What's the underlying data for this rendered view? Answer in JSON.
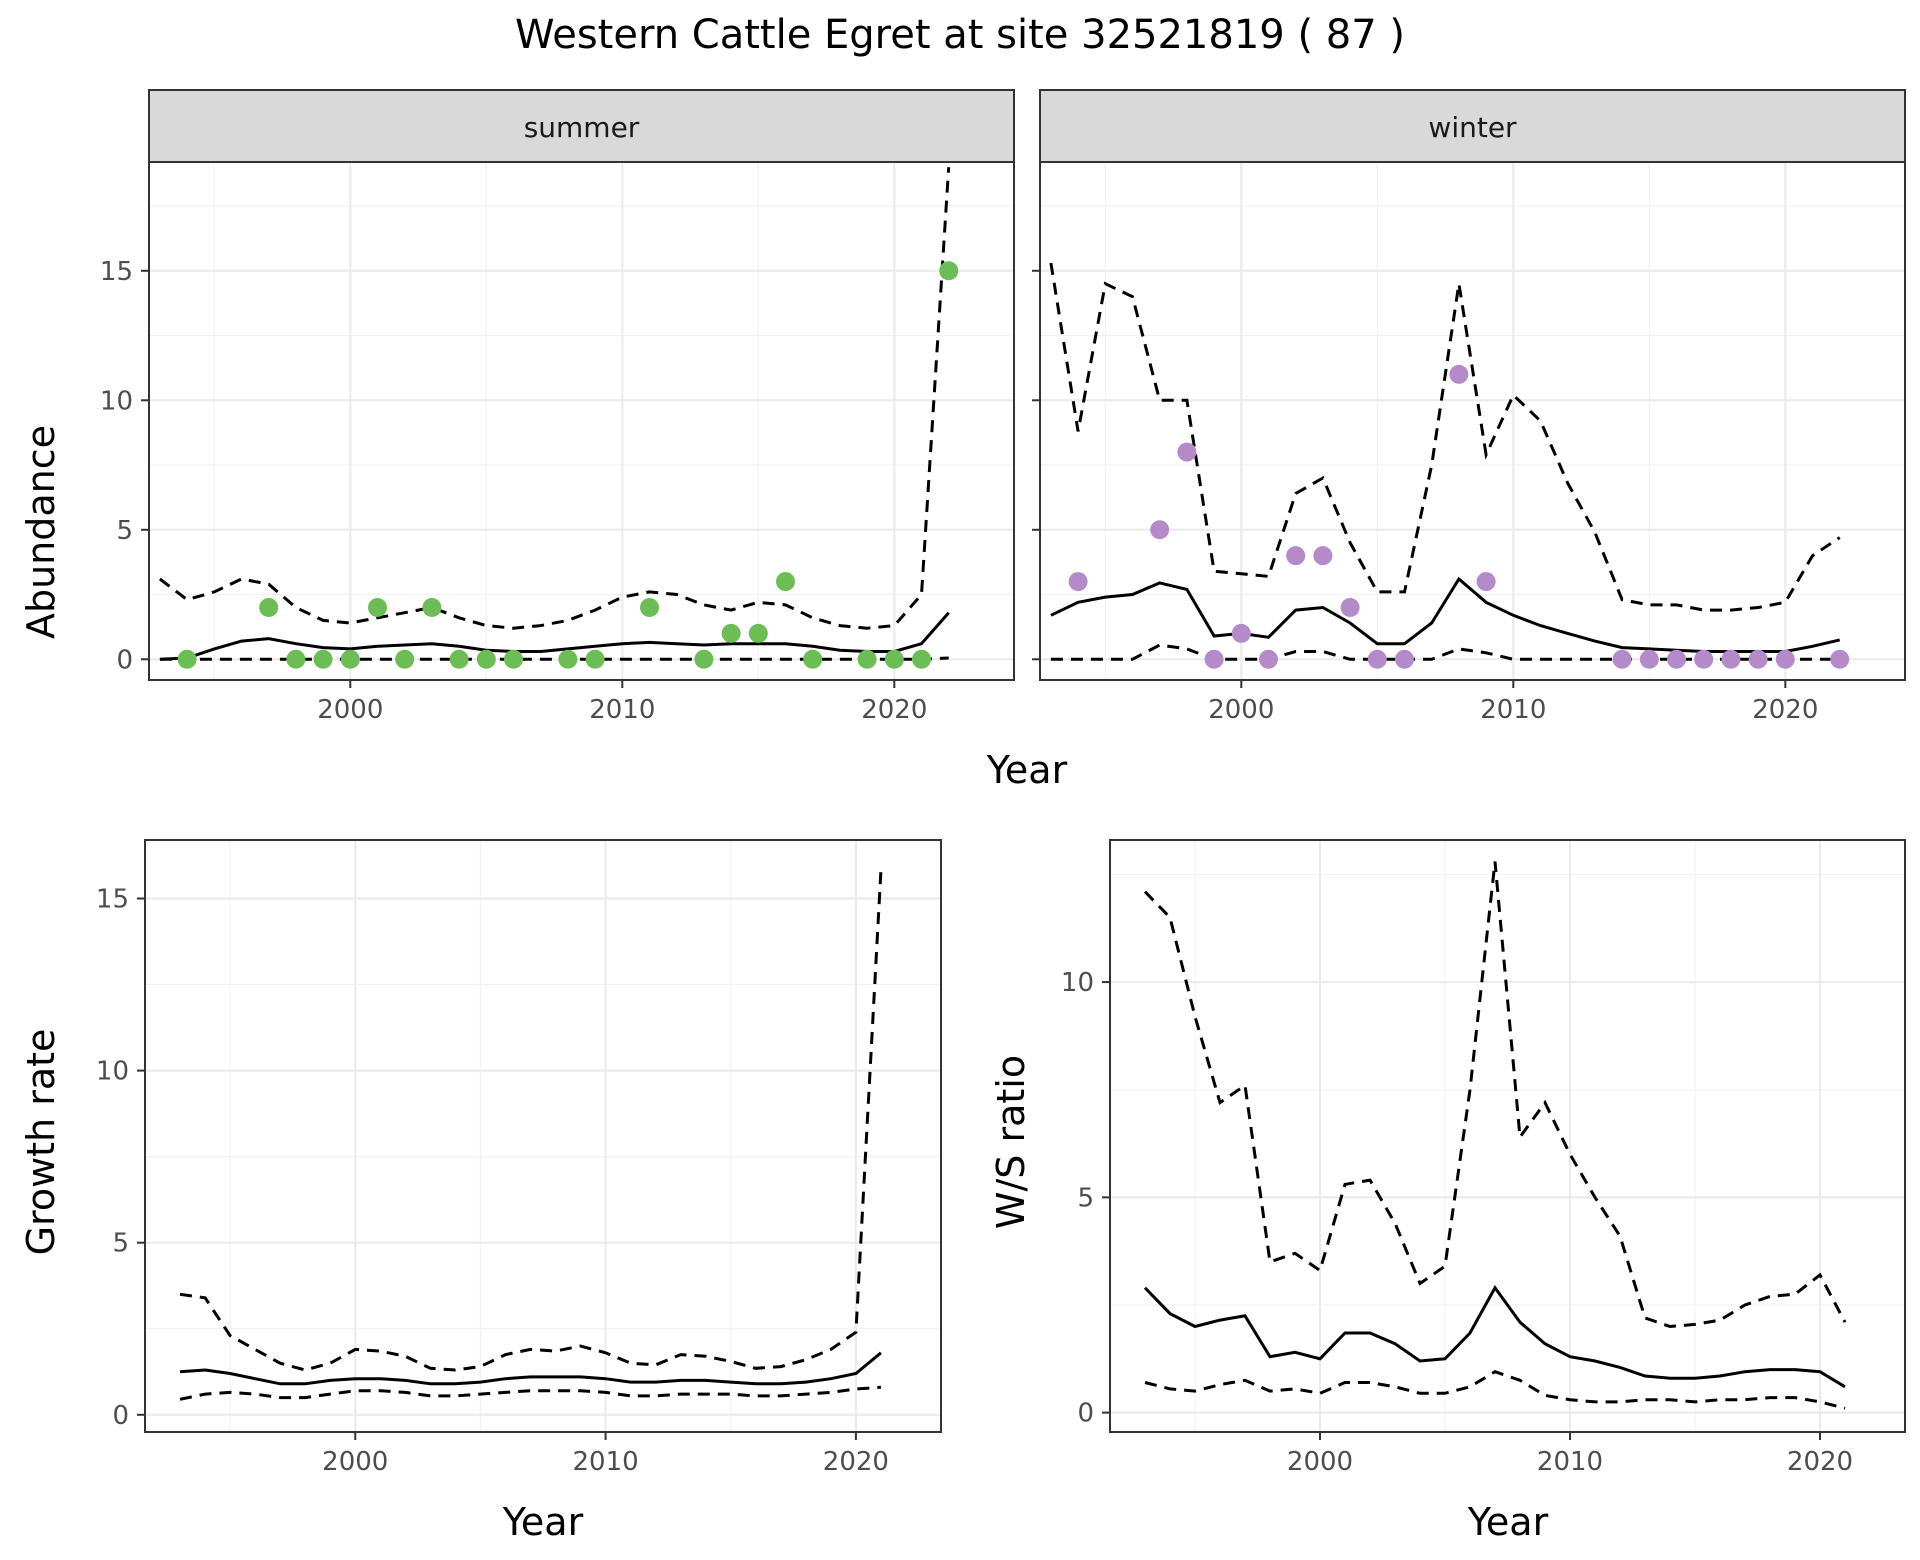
{
  "title": "Western Cattle Egret at site 32521819 ( 87 )",
  "colors": {
    "summer_points": "#6dbd57",
    "winter_points": "#b48bc8"
  },
  "chart_data": [
    {
      "id": "summer",
      "type": "line",
      "facet_label": "summer",
      "ylabel": "Abundance",
      "xlabel": "Year",
      "xlim": [
        1992.6,
        2024.4
      ],
      "ylim": [
        -0.8,
        19.2
      ],
      "xticks": [
        2000,
        2010,
        2020
      ],
      "yticks": [
        0,
        5,
        10,
        15
      ],
      "grid": true,
      "series": [
        {
          "role": "mean",
          "x": [
            1993,
            1994,
            1995,
            1996,
            1997,
            1998,
            1999,
            2000,
            2001,
            2002,
            2003,
            2004,
            2005,
            2006,
            2007,
            2008,
            2009,
            2010,
            2011,
            2012,
            2013,
            2014,
            2015,
            2016,
            2017,
            2018,
            2019,
            2020,
            2021,
            2022
          ],
          "y": [
            0,
            0.05,
            0.4,
            0.7,
            0.8,
            0.6,
            0.45,
            0.4,
            0.5,
            0.55,
            0.6,
            0.5,
            0.35,
            0.3,
            0.3,
            0.4,
            0.5,
            0.6,
            0.65,
            0.6,
            0.55,
            0.6,
            0.6,
            0.6,
            0.5,
            0.35,
            0.3,
            0.3,
            0.6,
            1.8
          ]
        },
        {
          "role": "upper",
          "x": [
            1993,
            1994,
            1995,
            1996,
            1997,
            1998,
            1999,
            2000,
            2001,
            2002,
            2003,
            2004,
            2005,
            2006,
            2007,
            2008,
            2009,
            2010,
            2011,
            2012,
            2013,
            2014,
            2015,
            2016,
            2017,
            2018,
            2019,
            2020,
            2021,
            2022
          ],
          "y": [
            3.1,
            2.3,
            2.6,
            3.1,
            2.9,
            2.0,
            1.5,
            1.4,
            1.6,
            1.8,
            2.0,
            1.6,
            1.3,
            1.2,
            1.3,
            1.5,
            1.9,
            2.4,
            2.6,
            2.5,
            2.1,
            1.9,
            2.2,
            2.1,
            1.6,
            1.3,
            1.2,
            1.3,
            2.5,
            19.0
          ]
        },
        {
          "role": "lower",
          "x": [
            1993,
            1994,
            1995,
            1996,
            1997,
            1998,
            1999,
            2000,
            2001,
            2002,
            2003,
            2004,
            2005,
            2006,
            2007,
            2008,
            2009,
            2010,
            2011,
            2012,
            2013,
            2014,
            2015,
            2016,
            2017,
            2018,
            2019,
            2020,
            2021,
            2022
          ],
          "y": [
            0,
            0,
            0,
            0,
            0,
            0,
            0,
            0,
            0,
            0,
            0,
            0,
            0,
            0,
            0,
            0,
            0,
            0,
            0,
            0,
            0,
            0,
            0,
            0,
            0,
            0,
            0,
            0,
            0,
            0.05
          ]
        },
        {
          "role": "observed",
          "x": [
            1994,
            1997,
            1998,
            1999,
            2000,
            2001,
            2002,
            2003,
            2004,
            2005,
            2006,
            2008,
            2009,
            2011,
            2013,
            2014,
            2015,
            2016,
            2017,
            2019,
            2020,
            2021,
            2022
          ],
          "y": [
            0,
            2,
            0,
            0,
            0,
            2,
            0,
            2,
            0,
            0,
            0,
            0,
            0,
            2,
            0,
            1,
            1,
            3,
            0,
            0,
            0,
            0,
            15
          ]
        }
      ]
    },
    {
      "id": "winter",
      "type": "line",
      "facet_label": "winter",
      "ylabel": "Abundance",
      "xlabel": "Year",
      "xlim": [
        1992.6,
        2024.4
      ],
      "ylim": [
        -0.8,
        19.2
      ],
      "xticks": [
        2000,
        2010,
        2020
      ],
      "yticks": [
        0,
        5,
        10,
        15
      ],
      "grid": true,
      "series": [
        {
          "role": "mean",
          "x": [
            1993,
            1994,
            1995,
            1996,
            1997,
            1998,
            1999,
            2000,
            2001,
            2002,
            2003,
            2004,
            2005,
            2006,
            2007,
            2008,
            2009,
            2010,
            2011,
            2012,
            2013,
            2014,
            2015,
            2016,
            2017,
            2018,
            2019,
            2020,
            2021,
            2022
          ],
          "y": [
            1.7,
            2.2,
            2.4,
            2.5,
            2.95,
            2.7,
            0.9,
            1.0,
            0.85,
            1.9,
            2.0,
            1.4,
            0.6,
            0.6,
            1.4,
            3.1,
            2.2,
            1.7,
            1.3,
            1.0,
            0.7,
            0.45,
            0.4,
            0.35,
            0.3,
            0.3,
            0.3,
            0.3,
            0.5,
            0.75
          ]
        },
        {
          "role": "upper",
          "x": [
            1993,
            1994,
            1995,
            1996,
            1997,
            1998,
            1999,
            2000,
            2001,
            2002,
            2003,
            2004,
            2005,
            2006,
            2007,
            2008,
            2009,
            2010,
            2011,
            2012,
            2013,
            2014,
            2015,
            2016,
            2017,
            2018,
            2019,
            2020,
            2021,
            2022
          ],
          "y": [
            15.3,
            8.8,
            14.5,
            14.0,
            10.0,
            10.0,
            3.4,
            3.3,
            3.2,
            6.4,
            7.0,
            4.5,
            2.6,
            2.6,
            7.5,
            14.5,
            7.9,
            10.2,
            9.2,
            6.8,
            4.9,
            2.3,
            2.1,
            2.1,
            1.9,
            1.9,
            2.0,
            2.2,
            4.0,
            4.7
          ]
        },
        {
          "role": "lower",
          "x": [
            1993,
            1994,
            1995,
            1996,
            1997,
            1998,
            1999,
            2000,
            2001,
            2002,
            2003,
            2004,
            2005,
            2006,
            2007,
            2008,
            2009,
            2010,
            2011,
            2012,
            2013,
            2014,
            2015,
            2016,
            2017,
            2018,
            2019,
            2020,
            2021,
            2022
          ],
          "y": [
            0,
            0,
            0,
            0,
            0.55,
            0.4,
            0,
            0,
            0,
            0.3,
            0.3,
            0,
            0,
            0,
            0,
            0.4,
            0.25,
            0,
            0,
            0,
            0,
            0,
            0,
            0,
            0,
            0,
            0,
            0,
            0,
            0
          ]
        },
        {
          "role": "observed",
          "x": [
            1994,
            1997,
            1998,
            1999,
            2000,
            2001,
            2002,
            2003,
            2004,
            2005,
            2006,
            2008,
            2009,
            2014,
            2015,
            2016,
            2017,
            2018,
            2019,
            2020,
            2022
          ],
          "y": [
            3,
            5,
            8,
            0,
            1,
            0,
            4,
            4,
            2,
            0,
            0,
            11,
            3,
            0,
            0,
            0,
            0,
            0,
            0,
            0,
            0
          ]
        }
      ]
    },
    {
      "id": "growth",
      "type": "line",
      "ylabel": "Growth rate",
      "xlabel": "Year",
      "xlim": [
        1991.6,
        2023.4
      ],
      "ylim": [
        -0.5,
        16.7
      ],
      "xticks": [
        2000,
        2010,
        2020
      ],
      "yticks": [
        0,
        5,
        10,
        15
      ],
      "grid": true,
      "series": [
        {
          "role": "mean",
          "x": [
            1993,
            1994,
            1995,
            1996,
            1997,
            1998,
            1999,
            2000,
            2001,
            2002,
            2003,
            2004,
            2005,
            2006,
            2007,
            2008,
            2009,
            2010,
            2011,
            2012,
            2013,
            2014,
            2015,
            2016,
            2017,
            2018,
            2019,
            2020,
            2021
          ],
          "y": [
            1.25,
            1.3,
            1.2,
            1.05,
            0.9,
            0.9,
            1.0,
            1.05,
            1.05,
            1.0,
            0.9,
            0.9,
            0.95,
            1.05,
            1.1,
            1.1,
            1.1,
            1.05,
            0.95,
            0.95,
            1.0,
            1.0,
            0.95,
            0.9,
            0.9,
            0.95,
            1.05,
            1.2,
            1.8
          ]
        },
        {
          "role": "upper",
          "x": [
            1993,
            1994,
            1995,
            1996,
            1997,
            1998,
            1999,
            2000,
            2001,
            2002,
            2003,
            2004,
            2005,
            2006,
            2007,
            2008,
            2009,
            2010,
            2011,
            2012,
            2013,
            2014,
            2015,
            2016,
            2017,
            2018,
            2019,
            2020,
            2021
          ],
          "y": [
            3.5,
            3.4,
            2.3,
            1.9,
            1.5,
            1.3,
            1.5,
            1.9,
            1.85,
            1.7,
            1.35,
            1.3,
            1.4,
            1.75,
            1.9,
            1.85,
            2.0,
            1.8,
            1.5,
            1.45,
            1.75,
            1.7,
            1.55,
            1.35,
            1.4,
            1.6,
            1.9,
            2.4,
            15.8
          ]
        },
        {
          "role": "lower",
          "x": [
            1993,
            1994,
            1995,
            1996,
            1997,
            1998,
            1999,
            2000,
            2001,
            2002,
            2003,
            2004,
            2005,
            2006,
            2007,
            2008,
            2009,
            2010,
            2011,
            2012,
            2013,
            2014,
            2015,
            2016,
            2017,
            2018,
            2019,
            2020,
            2021
          ],
          "y": [
            0.45,
            0.6,
            0.65,
            0.6,
            0.5,
            0.5,
            0.6,
            0.7,
            0.7,
            0.65,
            0.55,
            0.55,
            0.6,
            0.65,
            0.7,
            0.7,
            0.7,
            0.65,
            0.55,
            0.55,
            0.6,
            0.6,
            0.6,
            0.55,
            0.55,
            0.6,
            0.65,
            0.75,
            0.8
          ]
        }
      ]
    },
    {
      "id": "ratio",
      "type": "line",
      "ylabel": "W/S ratio",
      "xlabel": "Year",
      "xlim": [
        1991.6,
        2023.4
      ],
      "ylim": [
        -0.45,
        13.3
      ],
      "xticks": [
        2000,
        2010,
        2020
      ],
      "yticks": [
        0,
        5,
        10
      ],
      "grid": true,
      "series": [
        {
          "role": "mean",
          "x": [
            1993,
            1994,
            1995,
            1996,
            1997,
            1998,
            1999,
            2000,
            2001,
            2002,
            2003,
            2004,
            2005,
            2006,
            2007,
            2008,
            2009,
            2010,
            2011,
            2012,
            2013,
            2014,
            2015,
            2016,
            2017,
            2018,
            2019,
            2020,
            2021
          ],
          "y": [
            2.9,
            2.3,
            2.0,
            2.15,
            2.25,
            1.3,
            1.4,
            1.25,
            1.85,
            1.85,
            1.6,
            1.2,
            1.25,
            1.85,
            2.9,
            2.1,
            1.6,
            1.3,
            1.2,
            1.05,
            0.85,
            0.8,
            0.8,
            0.85,
            0.95,
            1.0,
            1.0,
            0.95,
            0.6
          ]
        },
        {
          "role": "upper",
          "x": [
            1993,
            1994,
            1995,
            1996,
            1997,
            1998,
            1999,
            2000,
            2001,
            2002,
            2003,
            2004,
            2005,
            2006,
            2007,
            2008,
            2009,
            2010,
            2011,
            2012,
            2013,
            2014,
            2015,
            2016,
            2017,
            2018,
            2019,
            2020,
            2021
          ],
          "y": [
            12.1,
            11.5,
            9.2,
            7.2,
            7.6,
            3.5,
            3.7,
            3.3,
            5.3,
            5.4,
            4.4,
            3.0,
            3.4,
            7.5,
            12.8,
            6.4,
            7.2,
            6.0,
            5.0,
            4.1,
            2.2,
            2.0,
            2.05,
            2.15,
            2.5,
            2.7,
            2.75,
            3.2,
            2.1
          ]
        },
        {
          "role": "lower",
          "x": [
            1993,
            1994,
            1995,
            1996,
            1997,
            1998,
            1999,
            2000,
            2001,
            2002,
            2003,
            2004,
            2005,
            2006,
            2007,
            2008,
            2009,
            2010,
            2011,
            2012,
            2013,
            2014,
            2015,
            2016,
            2017,
            2018,
            2019,
            2020,
            2021
          ],
          "y": [
            0.7,
            0.55,
            0.5,
            0.65,
            0.75,
            0.5,
            0.55,
            0.45,
            0.7,
            0.7,
            0.6,
            0.45,
            0.45,
            0.6,
            0.95,
            0.75,
            0.4,
            0.3,
            0.25,
            0.25,
            0.3,
            0.3,
            0.25,
            0.3,
            0.3,
            0.35,
            0.35,
            0.25,
            0.1
          ]
        }
      ]
    }
  ]
}
